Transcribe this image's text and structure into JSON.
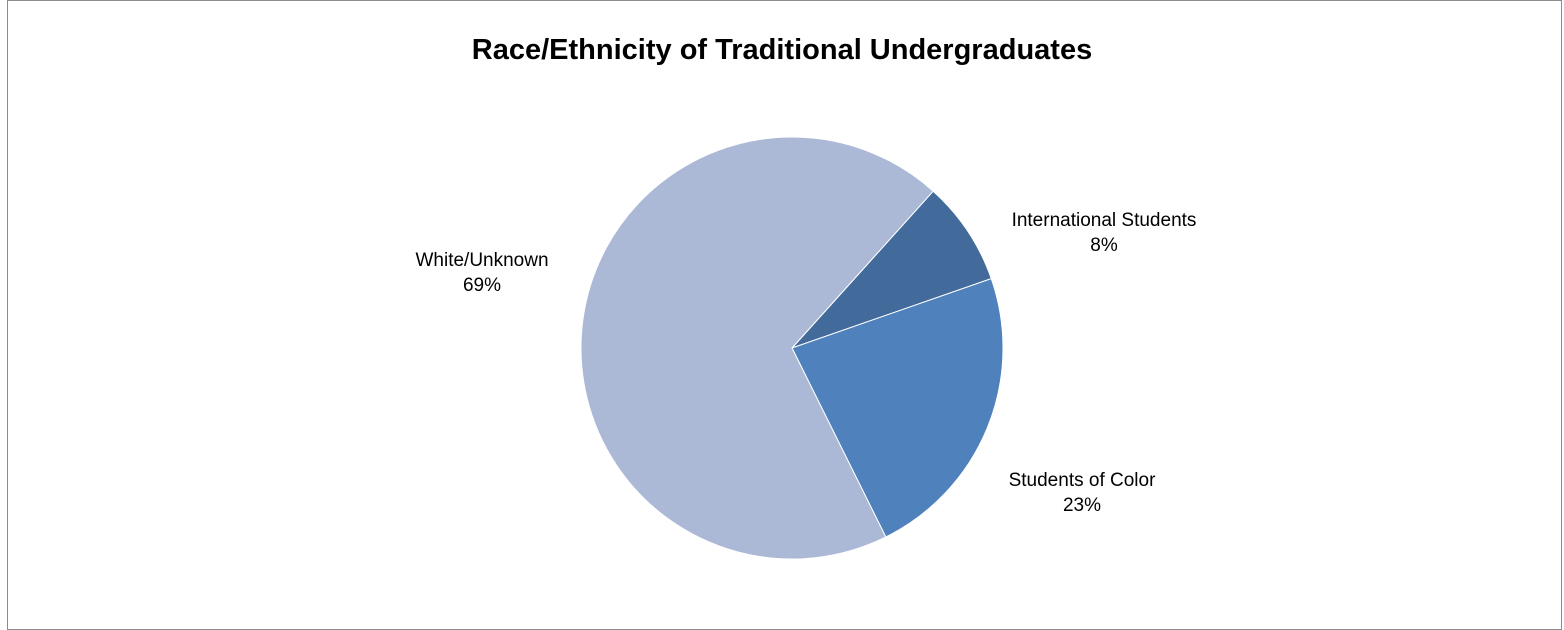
{
  "chart_data": {
    "type": "pie",
    "title": "Race/Ethnicity of Traditional Undergraduates",
    "slices": [
      {
        "name": "International Students",
        "value": 8,
        "label": "8%",
        "color": "#426a9b"
      },
      {
        "name": "Students of Color",
        "value": 23,
        "label": "23%",
        "color": "#4f81bd"
      },
      {
        "name": "White/Unknown",
        "value": 69,
        "label": "69%",
        "color": "#abb9d6"
      }
    ],
    "start_angle_deg": 42,
    "legend": "none",
    "data_labels": "outside-end"
  }
}
